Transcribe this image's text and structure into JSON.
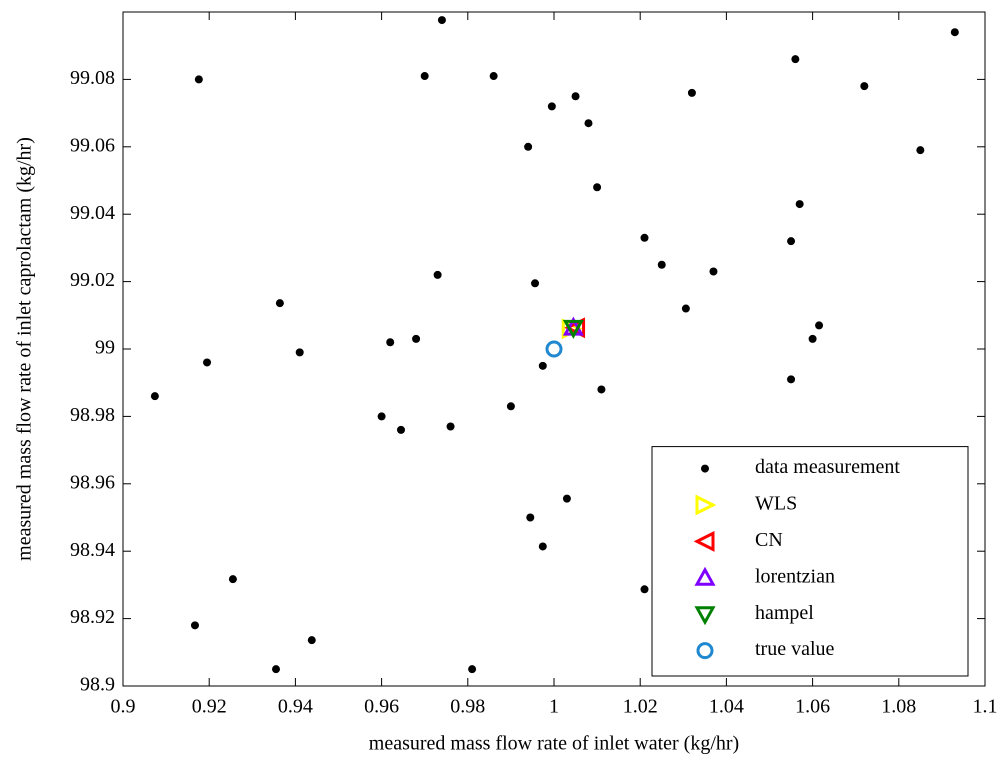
{
  "chart_data": {
    "type": "scatter",
    "x_label": "measured mass flow rate of inlet water (kg/hr)",
    "y_label": "measured mass flow rate of inlet caprolactam (kg/hr)",
    "xlim": [
      0.9,
      1.1
    ],
    "ylim": [
      98.9,
      99.1
    ],
    "xticks": [
      0.9,
      0.92,
      0.94,
      0.96,
      0.98,
      1,
      1.02,
      1.04,
      1.06,
      1.08,
      1.1
    ],
    "yticks": [
      98.9,
      98.92,
      98.94,
      98.96,
      98.98,
      99,
      99.02,
      99.04,
      99.06,
      99.08
    ],
    "legend": "lower right",
    "series": [
      {
        "name": "data measurement",
        "color": "#000000",
        "marker": "dot",
        "x": [
          0.974,
          0.9176,
          0.97,
          0.986,
          1.056,
          1.093,
          1.072,
          0.9995,
          1.005,
          1.032,
          1.008,
          0.994,
          1.085,
          1.01,
          1.057,
          1.021,
          1.055,
          0.973,
          1.025,
          1.037,
          0.9956,
          0.9364,
          1.0306,
          1.0615,
          1.06,
          0.968,
          0.962,
          0.941,
          0.9195,
          0.9974,
          1.055,
          1.011,
          0.9074,
          0.96,
          0.99,
          0.9645,
          0.976,
          1.003,
          0.9945,
          0.9974,
          0.9255,
          1.021,
          0.9167,
          0.9438,
          0.9355,
          0.981
        ],
        "y": [
          99.0976,
          99.08,
          99.081,
          99.081,
          99.086,
          99.094,
          99.078,
          99.072,
          99.075,
          99.076,
          99.067,
          99.06,
          99.059,
          99.048,
          99.043,
          99.033,
          99.032,
          99.022,
          99.025,
          99.023,
          99.0195,
          99.0136,
          99.012,
          99.007,
          99.003,
          99.003,
          99.002,
          98.999,
          98.996,
          98.995,
          98.991,
          98.988,
          98.986,
          98.98,
          98.983,
          98.976,
          98.977,
          98.9556,
          98.95,
          98.9414,
          98.9317,
          98.9287,
          98.918,
          98.9136,
          98.905,
          98.905
        ]
      },
      {
        "name": "WLS",
        "color": "#ffff00",
        "marker": "triangle-right",
        "x": [
          1.004
        ],
        "y": [
          99.006
        ]
      },
      {
        "name": "CN",
        "color": "#ff0000",
        "marker": "triangle-left",
        "x": [
          1.005
        ],
        "y": [
          99.0063
        ]
      },
      {
        "name": "lorentzian",
        "color": "#8000ff",
        "marker": "triangle-up",
        "x": [
          1.0045
        ],
        "y": [
          99.0063
        ]
      },
      {
        "name": "hampel",
        "color": "#008000",
        "marker": "triangle-down",
        "x": [
          1.0045
        ],
        "y": [
          99.0063
        ]
      },
      {
        "name": "true value",
        "color": "#1f88d0",
        "marker": "circle",
        "x": [
          1
        ],
        "y": [
          99
        ]
      }
    ]
  }
}
